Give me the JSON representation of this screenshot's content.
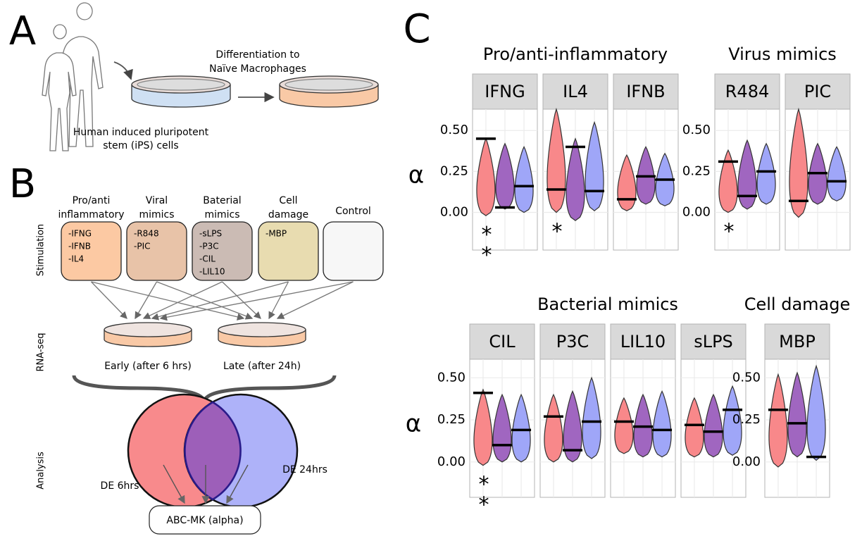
{
  "panel_a": {
    "letter": "A",
    "caption_top": [
      "Differentiation to",
      "Naïve Macrophages"
    ],
    "caption_bottom": [
      "Human induced pluripotent",
      "stem (iPS) cells"
    ]
  },
  "panel_b": {
    "letter": "B",
    "stages": [
      "Stimulation",
      "RNA-seq",
      "Analysis"
    ],
    "groups": [
      {
        "title": [
          "Pro/anti",
          "inflammatory"
        ],
        "items": [
          "-IFNG",
          "-IFNB",
          "-IL4"
        ],
        "color": "#fcc9a3"
      },
      {
        "title": [
          "Viral",
          "mimics"
        ],
        "items": [
          "-R848",
          "-PIC"
        ],
        "color": "#e8c3a8"
      },
      {
        "title": [
          "Baterial",
          "mimics"
        ],
        "items": [
          "-sLPS",
          "-P3C",
          "-CIL",
          "-LIL10"
        ],
        "color": "#cbbbb4"
      },
      {
        "title": [
          "Cell",
          "damage"
        ],
        "items": [
          "-MBP"
        ],
        "color": "#e8dcb0"
      },
      {
        "title": [
          "Control"
        ],
        "items": [],
        "color": "#f7f7f7"
      }
    ],
    "timepoints": [
      "Early (after 6 hrs)",
      "Late (after 24h)"
    ],
    "venn": [
      "DE 6hrs",
      "DE 24hrs"
    ],
    "output": "ABC-MK (alpha)"
  },
  "panel_c": {
    "letter": "C"
  },
  "chart_data": [
    {
      "type": "violin",
      "title": "Pro/anti-inflammatory",
      "y_label": "α",
      "ylim": [
        -0.23,
        0.63
      ],
      "yticks": [
        {
          "value": 0,
          "label": "0.00"
        },
        {
          "value": 0.25,
          "label": "0.25"
        },
        {
          "value": 0.5,
          "label": "0.50"
        }
      ],
      "colors": [
        "#f8888a",
        "#a066c0",
        "#9fa6f8"
      ],
      "facets": [
        {
          "name": "IFNG",
          "violins": [
            {
              "range": [
                -0.02,
                0.45
              ],
              "estimate": 0.45,
              "stars": "**"
            },
            {
              "range": [
                0.02,
                0.42
              ],
              "estimate": 0.03
            },
            {
              "range": [
                0.0,
                0.4
              ],
              "estimate": 0.16
            }
          ]
        },
        {
          "name": "IL4",
          "violins": [
            {
              "range": [
                0.0,
                0.63
              ],
              "estimate": 0.14,
              "stars": "*"
            },
            {
              "range": [
                -0.05,
                0.45
              ],
              "estimate": 0.4
            },
            {
              "range": [
                0.01,
                0.55
              ],
              "estimate": 0.13
            }
          ]
        },
        {
          "name": "IFNB",
          "violins": [
            {
              "range": [
                0.01,
                0.35
              ],
              "estimate": 0.08
            },
            {
              "range": [
                0.05,
                0.4
              ],
              "estimate": 0.22
            },
            {
              "range": [
                0.04,
                0.36
              ],
              "estimate": 0.2
            }
          ]
        }
      ]
    },
    {
      "type": "violin",
      "title": "Virus mimics",
      "ylim": [
        -0.23,
        0.63
      ],
      "yticks": [
        {
          "value": 0,
          "label": "0.00"
        },
        {
          "value": 0.25,
          "label": "0.25"
        },
        {
          "value": 0.5,
          "label": "0.50"
        }
      ],
      "colors": [
        "#f8888a",
        "#a066c0",
        "#9fa6f8"
      ],
      "facets": [
        {
          "name": "R484",
          "violins": [
            {
              "range": [
                0.0,
                0.38
              ],
              "estimate": 0.31,
              "stars": "*"
            },
            {
              "range": [
                0.02,
                0.44
              ],
              "estimate": 0.1
            },
            {
              "range": [
                0.05,
                0.42
              ],
              "estimate": 0.25
            }
          ]
        },
        {
          "name": "PIC",
          "violins": [
            {
              "range": [
                -0.03,
                0.63
              ],
              "estimate": 0.07
            },
            {
              "range": [
                0.05,
                0.42
              ],
              "estimate": 0.24
            },
            {
              "range": [
                0.07,
                0.4
              ],
              "estimate": 0.19
            }
          ]
        }
      ]
    },
    {
      "type": "violin",
      "title": "Bacterial mimics",
      "y_label": "α",
      "ylim": [
        -0.21,
        0.61
      ],
      "yticks": [
        {
          "value": 0,
          "label": "0.00"
        },
        {
          "value": 0.25,
          "label": "0.25"
        },
        {
          "value": 0.5,
          "label": "0.50"
        }
      ],
      "colors": [
        "#f8888a",
        "#a066c0",
        "#9fa6f8"
      ],
      "facets": [
        {
          "name": "CIL",
          "violins": [
            {
              "range": [
                -0.02,
                0.43
              ],
              "estimate": 0.41,
              "stars": "**"
            },
            {
              "range": [
                0.0,
                0.4
              ],
              "estimate": 0.1
            },
            {
              "range": [
                0.0,
                0.4
              ],
              "estimate": 0.19
            }
          ]
        },
        {
          "name": "P3C",
          "violins": [
            {
              "range": [
                0.0,
                0.4
              ],
              "estimate": 0.27
            },
            {
              "range": [
                0.0,
                0.42
              ],
              "estimate": 0.07
            },
            {
              "range": [
                0.02,
                0.5
              ],
              "estimate": 0.24
            }
          ]
        },
        {
          "name": "LIL10",
          "violins": [
            {
              "range": [
                0.05,
                0.38
              ],
              "estimate": 0.24
            },
            {
              "range": [
                0.03,
                0.4
              ],
              "estimate": 0.21
            },
            {
              "range": [
                0.03,
                0.42
              ],
              "estimate": 0.19
            }
          ]
        },
        {
          "name": "sLPS",
          "violins": [
            {
              "range": [
                0.03,
                0.38
              ],
              "estimate": 0.22
            },
            {
              "range": [
                0.03,
                0.4
              ],
              "estimate": 0.18
            },
            {
              "range": [
                0.04,
                0.45
              ],
              "estimate": 0.31
            }
          ]
        }
      ]
    },
    {
      "type": "violin",
      "title": "Cell damage",
      "ylim": [
        -0.21,
        0.61
      ],
      "yticks": [
        {
          "value": 0,
          "label": "0.00"
        },
        {
          "value": 0.25,
          "label": "0.25"
        },
        {
          "value": 0.5,
          "label": "0.50"
        }
      ],
      "colors": [
        "#f8888a",
        "#a066c0",
        "#9fa6f8"
      ],
      "facets": [
        {
          "name": "MBP",
          "violins": [
            {
              "range": [
                -0.03,
                0.52
              ],
              "estimate": 0.31
            },
            {
              "range": [
                0.03,
                0.53
              ],
              "estimate": 0.23
            },
            {
              "range": [
                0.01,
                0.57
              ],
              "estimate": 0.03
            }
          ]
        }
      ]
    }
  ]
}
